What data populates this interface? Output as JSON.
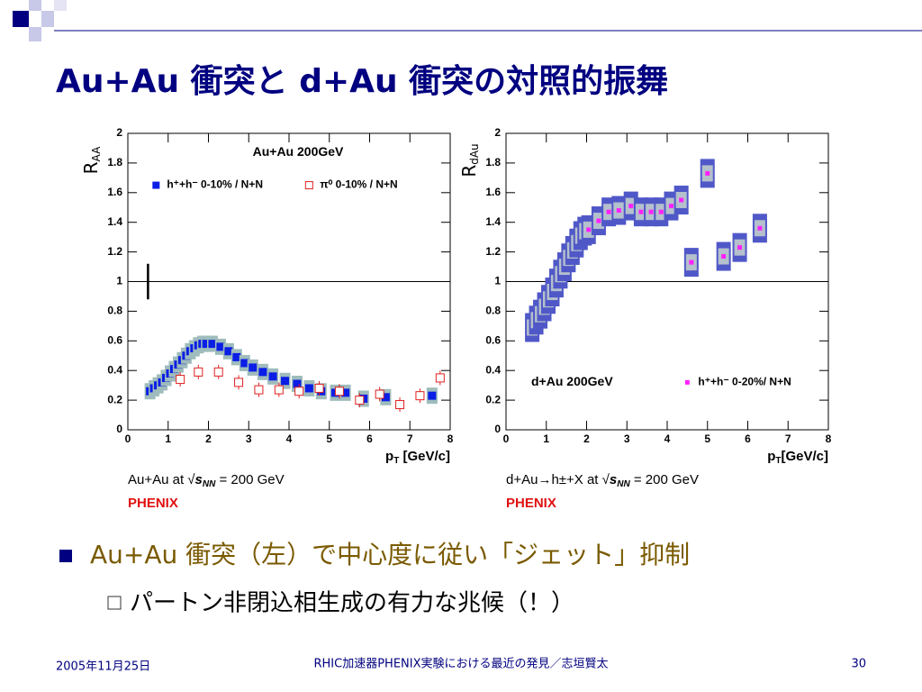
{
  "title": "Au+Au 衝突と d+Au 衝突の対照的振舞",
  "chart_data": [
    {
      "type": "scatter",
      "annotation": "Au+Au 200GeV",
      "ylabel": {
        "text": "R",
        "sub": "AA"
      },
      "xlabel": {
        "text": "p",
        "sub": "T",
        "rest": " [GeV/c]"
      },
      "xlim": [
        0,
        8
      ],
      "xticks": [
        0,
        1,
        2,
        3,
        4,
        5,
        6,
        7,
        8
      ],
      "ylim": [
        0,
        2
      ],
      "yticks": [
        0,
        0.2,
        0.4,
        0.6,
        0.8,
        1,
        1.2,
        1.4,
        1.6,
        1.8,
        2
      ],
      "hline": 1,
      "legend": "upper center",
      "series": [
        {
          "name": "h⁺+h⁻ 0-10% / N+N",
          "color": "#0a1ee6",
          "marker": "filled",
          "band": "#9fbcbc",
          "x": [
            0.55,
            0.65,
            0.75,
            0.85,
            0.95,
            1.05,
            1.15,
            1.25,
            1.35,
            1.45,
            1.55,
            1.65,
            1.75,
            1.85,
            1.95,
            2.1,
            2.3,
            2.5,
            2.7,
            2.9,
            3.1,
            3.35,
            3.6,
            3.9,
            4.2,
            4.5,
            4.8,
            5.15,
            5.4,
            5.85,
            6.4,
            7.55
          ],
          "values": [
            0.26,
            0.28,
            0.3,
            0.32,
            0.35,
            0.38,
            0.41,
            0.44,
            0.47,
            0.5,
            0.53,
            0.55,
            0.57,
            0.58,
            0.58,
            0.58,
            0.56,
            0.53,
            0.49,
            0.45,
            0.42,
            0.39,
            0.36,
            0.33,
            0.31,
            0.28,
            0.26,
            0.25,
            0.25,
            0.21,
            0.22,
            0.23
          ]
        },
        {
          "name": "π⁰ 0-10% / N+N",
          "color": "#e02020",
          "marker": "open",
          "x": [
            1.3,
            1.75,
            2.25,
            2.75,
            3.25,
            3.75,
            4.25,
            4.75,
            5.25,
            5.75,
            6.25,
            6.75,
            7.25,
            7.75
          ],
          "values": [
            0.34,
            0.39,
            0.39,
            0.32,
            0.27,
            0.27,
            0.26,
            0.28,
            0.26,
            0.2,
            0.24,
            0.17,
            0.23,
            0.35
          ]
        }
      ],
      "caption": [
        "Au+Au at √",
        "s",
        "NN",
        " = 200 GeV"
      ],
      "experiment": "PHENIX"
    },
    {
      "type": "scatter",
      "annotation": "d+Au 200GeV",
      "ylabel": {
        "text": "R",
        "sub": "dAu"
      },
      "xlabel": {
        "text": "p",
        "sub": "T",
        "rest": "[GeV/c]"
      },
      "xlim": [
        0,
        8
      ],
      "xticks": [
        0,
        1,
        2,
        3,
        4,
        5,
        6,
        7,
        8
      ],
      "ylim": [
        0,
        2
      ],
      "yticks": [
        0,
        0.2,
        0.4,
        0.6,
        0.8,
        1,
        1.2,
        1.4,
        1.6,
        1.8,
        2
      ],
      "hline": 1,
      "legend": "lower right",
      "series": [
        {
          "name": "h⁺+h⁻ 0-20%/ N+N",
          "color": "#ff20ff",
          "marker": "small",
          "band": "#b4c0cc",
          "box": "#5058c8",
          "x": [
            0.65,
            0.75,
            0.85,
            0.95,
            1.05,
            1.15,
            1.25,
            1.35,
            1.45,
            1.55,
            1.65,
            1.75,
            1.85,
            1.95,
            2.05,
            2.3,
            2.55,
            2.8,
            3.1,
            3.35,
            3.6,
            3.85,
            4.1,
            4.35,
            4.6,
            5.0,
            5.4,
            5.8,
            6.3
          ],
          "values": [
            0.69,
            0.74,
            0.78,
            0.83,
            0.88,
            0.93,
            0.99,
            1.05,
            1.1,
            1.16,
            1.21,
            1.26,
            1.31,
            1.34,
            1.35,
            1.41,
            1.47,
            1.48,
            1.51,
            1.47,
            1.47,
            1.47,
            1.51,
            1.55,
            1.13,
            1.73,
            1.17,
            1.23,
            1.36
          ]
        }
      ],
      "caption": [
        "d+Au→h±+X at √",
        "s",
        "NN",
        " = 200 GeV"
      ],
      "experiment": "PHENIX"
    }
  ],
  "bullets": [
    {
      "text": "Au+Au 衝突（左）で中心度に従い「ジェット」抑制",
      "sub": [
        "パートン非閉込相生成の有力な兆候（！）"
      ]
    }
  ],
  "footer": {
    "date": "2005年11月25日",
    "center": "RHIC加速器PHENIX実験における最近の発見／志垣賢太",
    "page": "30"
  }
}
